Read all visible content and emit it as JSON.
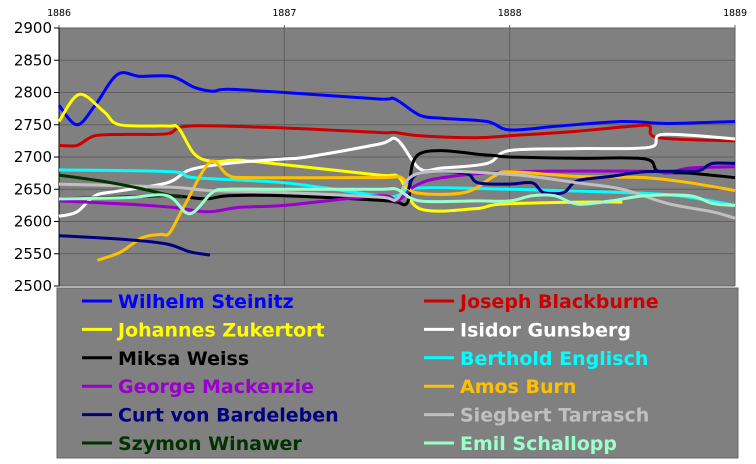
{
  "chart_data": {
    "type": "line",
    "title": "",
    "xlabel": "",
    "ylabel": "",
    "xlim": [
      1886,
      1889
    ],
    "ylim": [
      2500,
      2900
    ],
    "x_ticks": [
      "1886",
      "1887",
      "1888",
      "1889"
    ],
    "y_ticks": [
      "2900",
      "2850",
      "2800",
      "2750",
      "2700",
      "2650",
      "2600",
      "2550",
      "2500"
    ],
    "grid": true,
    "legend_placement": "bottom",
    "series": [
      {
        "name": "Wilhelm Steinitz",
        "color": "#0000FF",
        "points": [
          [
            1886.0,
            2780
          ],
          [
            1886.08,
            2750
          ],
          [
            1886.16,
            2780
          ],
          [
            1886.26,
            2828
          ],
          [
            1886.36,
            2825
          ],
          [
            1886.5,
            2825
          ],
          [
            1886.6,
            2808
          ],
          [
            1886.68,
            2802
          ],
          [
            1886.75,
            2805
          ],
          [
            1887.0,
            2800
          ],
          [
            1887.42,
            2790
          ],
          [
            1887.49,
            2790
          ],
          [
            1887.6,
            2765
          ],
          [
            1887.7,
            2760
          ],
          [
            1887.9,
            2755
          ],
          [
            1888.0,
            2742
          ],
          [
            1888.22,
            2748
          ],
          [
            1888.5,
            2755
          ],
          [
            1888.7,
            2752
          ],
          [
            1889.0,
            2755
          ]
        ]
      },
      {
        "name": "Joseph Blackburne",
        "color": "#CC0000",
        "points": [
          [
            1886.0,
            2718
          ],
          [
            1886.08,
            2718
          ],
          [
            1886.16,
            2733
          ],
          [
            1886.3,
            2735
          ],
          [
            1886.48,
            2736
          ],
          [
            1886.58,
            2748
          ],
          [
            1887.0,
            2745
          ],
          [
            1887.42,
            2738
          ],
          [
            1887.49,
            2738
          ],
          [
            1887.6,
            2733
          ],
          [
            1887.85,
            2730
          ],
          [
            1888.0,
            2733
          ],
          [
            1888.3,
            2740
          ],
          [
            1888.55,
            2748
          ],
          [
            1888.62,
            2748
          ],
          [
            1888.66,
            2730
          ],
          [
            1889.0,
            2725
          ]
        ]
      },
      {
        "name": "Johannes Zukertort",
        "color": "#FFFF00",
        "points": [
          [
            1886.0,
            2755
          ],
          [
            1886.09,
            2797
          ],
          [
            1886.2,
            2770
          ],
          [
            1886.27,
            2750
          ],
          [
            1886.48,
            2748
          ],
          [
            1886.53,
            2745
          ],
          [
            1886.6,
            2705
          ],
          [
            1886.68,
            2693
          ],
          [
            1886.8,
            2695
          ],
          [
            1887.0,
            2688
          ],
          [
            1887.42,
            2672
          ],
          [
            1887.51,
            2668
          ],
          [
            1887.6,
            2620
          ],
          [
            1887.85,
            2620
          ],
          [
            1887.96,
            2627
          ],
          [
            1888.3,
            2630
          ],
          [
            1888.5,
            2630
          ]
        ]
      },
      {
        "name": "Isidor Gunsberg",
        "color": "#FFFFFF",
        "points": [
          [
            1886.0,
            2608
          ],
          [
            1886.08,
            2615
          ],
          [
            1886.16,
            2640
          ],
          [
            1886.26,
            2647
          ],
          [
            1886.48,
            2660
          ],
          [
            1886.58,
            2680
          ],
          [
            1886.75,
            2690
          ],
          [
            1887.0,
            2697
          ],
          [
            1887.1,
            2700
          ],
          [
            1887.42,
            2720
          ],
          [
            1887.5,
            2727
          ],
          [
            1887.6,
            2682
          ],
          [
            1887.7,
            2683
          ],
          [
            1887.9,
            2690
          ],
          [
            1888.0,
            2710
          ],
          [
            1888.3,
            2713
          ],
          [
            1888.62,
            2715
          ],
          [
            1888.68,
            2735
          ],
          [
            1889.0,
            2728
          ]
        ]
      },
      {
        "name": "Miksa Weiss",
        "color": "#000000",
        "points": [
          [
            1886.0,
            2635
          ],
          [
            1886.3,
            2638
          ],
          [
            1886.5,
            2640
          ],
          [
            1886.65,
            2635
          ],
          [
            1886.75,
            2640
          ],
          [
            1887.0,
            2640
          ],
          [
            1887.42,
            2633
          ],
          [
            1887.5,
            2630
          ],
          [
            1887.55,
            2632
          ],
          [
            1887.6,
            2705
          ],
          [
            1887.9,
            2703
          ],
          [
            1888.0,
            2700
          ],
          [
            1888.3,
            2698
          ],
          [
            1888.6,
            2697
          ],
          [
            1888.66,
            2678
          ],
          [
            1888.8,
            2675
          ],
          [
            1889.0,
            2668
          ]
        ]
      },
      {
        "name": "Berthold Englisch",
        "color": "#00FFFF",
        "points": [
          [
            1886.0,
            2680
          ],
          [
            1886.5,
            2677
          ],
          [
            1886.6,
            2668
          ],
          [
            1887.0,
            2660
          ],
          [
            1887.42,
            2640
          ],
          [
            1887.5,
            2640
          ],
          [
            1887.6,
            2652
          ],
          [
            1888.0,
            2650
          ],
          [
            1888.5,
            2645
          ],
          [
            1888.75,
            2640
          ],
          [
            1889.0,
            2625
          ]
        ]
      },
      {
        "name": "George Mackenzie",
        "color": "#9900CC",
        "points": [
          [
            1886.0,
            2632
          ],
          [
            1886.3,
            2627
          ],
          [
            1886.5,
            2622
          ],
          [
            1886.66,
            2615
          ],
          [
            1886.8,
            2622
          ],
          [
            1887.0,
            2625
          ],
          [
            1887.42,
            2640
          ],
          [
            1887.5,
            2632
          ],
          [
            1887.58,
            2655
          ],
          [
            1887.7,
            2668
          ],
          [
            1888.0,
            2677
          ],
          [
            1888.6,
            2678
          ],
          [
            1888.7,
            2675
          ],
          [
            1888.8,
            2683
          ],
          [
            1889.0,
            2685
          ]
        ]
      },
      {
        "name": "Amos Burn",
        "color": "#FFC000",
        "points": [
          [
            1886.17,
            2540
          ],
          [
            1886.27,
            2552
          ],
          [
            1886.37,
            2575
          ],
          [
            1886.45,
            2580
          ],
          [
            1886.49,
            2582
          ],
          [
            1886.55,
            2620
          ],
          [
            1886.67,
            2692
          ],
          [
            1886.75,
            2672
          ],
          [
            1886.85,
            2668
          ],
          [
            1887.42,
            2668
          ],
          [
            1887.52,
            2668
          ],
          [
            1887.58,
            2645
          ],
          [
            1887.8,
            2645
          ],
          [
            1887.93,
            2670
          ],
          [
            1888.0,
            2677
          ],
          [
            1888.3,
            2670
          ],
          [
            1888.6,
            2668
          ],
          [
            1888.8,
            2660
          ],
          [
            1889.0,
            2648
          ]
        ]
      },
      {
        "name": "Curt von Bardeleben",
        "color": "#000080",
        "points": [
          [
            1886.0,
            2578
          ],
          [
            1886.3,
            2572
          ],
          [
            1886.48,
            2565
          ],
          [
            1886.58,
            2553
          ],
          [
            1886.67,
            2548
          ]
        ],
        "points2": [
          [
            1887.55,
            2650
          ],
          [
            1887.6,
            2675
          ],
          [
            1887.8,
            2675
          ],
          [
            1887.86,
            2660
          ],
          [
            1888.0,
            2658
          ],
          [
            1888.1,
            2660
          ],
          [
            1888.15,
            2645
          ],
          [
            1888.24,
            2645
          ],
          [
            1888.3,
            2663
          ],
          [
            1888.45,
            2670
          ],
          [
            1888.6,
            2677
          ],
          [
            1888.8,
            2678
          ],
          [
            1888.85,
            2680
          ],
          [
            1888.9,
            2690
          ],
          [
            1889.0,
            2690
          ]
        ]
      },
      {
        "name": "Siegbert Tarrasch",
        "color": "#C0C0C0",
        "points": [
          [
            1886.0,
            2658
          ],
          [
            1886.5,
            2653
          ],
          [
            1886.67,
            2648
          ],
          [
            1887.0,
            2645
          ],
          [
            1887.42,
            2638
          ],
          [
            1887.5,
            2635
          ],
          [
            1887.6,
            2675
          ],
          [
            1888.0,
            2673
          ],
          [
            1888.3,
            2660
          ],
          [
            1888.5,
            2650
          ],
          [
            1888.7,
            2628
          ],
          [
            1888.9,
            2615
          ],
          [
            1889.0,
            2605
          ]
        ]
      },
      {
        "name": "Szymon Winawer",
        "color": "#003300",
        "points": [
          [
            1886.0,
            2672
          ],
          [
            1886.2,
            2662
          ],
          [
            1886.35,
            2652
          ],
          [
            1886.5,
            2640
          ],
          [
            1886.55,
            2638
          ]
        ]
      },
      {
        "name": "Emil Schallopp",
        "color": "#99FFCC",
        "points": [
          [
            1886.0,
            2635
          ],
          [
            1886.3,
            2637
          ],
          [
            1886.48,
            2640
          ],
          [
            1886.58,
            2612
          ],
          [
            1886.68,
            2645
          ],
          [
            1886.75,
            2650
          ],
          [
            1887.0,
            2650
          ],
          [
            1887.42,
            2650
          ],
          [
            1887.5,
            2650
          ],
          [
            1887.6,
            2632
          ],
          [
            1887.85,
            2632
          ],
          [
            1888.0,
            2632
          ],
          [
            1888.1,
            2640
          ],
          [
            1888.2,
            2640
          ],
          [
            1888.3,
            2627
          ],
          [
            1888.45,
            2632
          ],
          [
            1888.6,
            2640
          ],
          [
            1888.8,
            2640
          ],
          [
            1888.9,
            2628
          ],
          [
            1889.0,
            2625
          ]
        ]
      }
    ]
  }
}
